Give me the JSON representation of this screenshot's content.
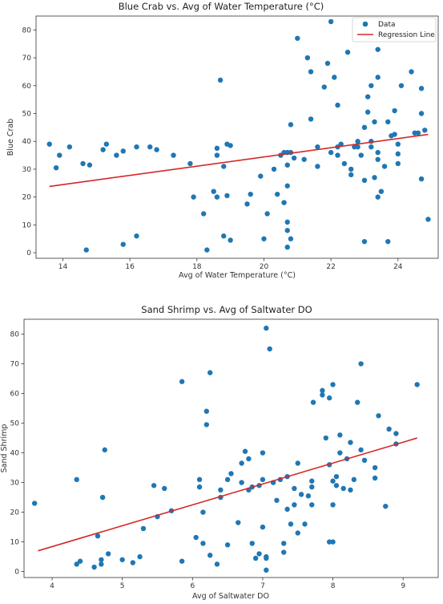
{
  "chart_data": [
    {
      "type": "scatter",
      "title": "Blue Crab vs. Avg of Water Temperature (°C)",
      "xlabel": "Avg of Water Temperature (°C)",
      "ylabel": "Blue Crab",
      "xlim": [
        13.2,
        25.2
      ],
      "ylim": [
        -2,
        85
      ],
      "xticks": [
        14,
        16,
        18,
        20,
        22,
        24
      ],
      "yticks": [
        0,
        10,
        20,
        30,
        40,
        50,
        60,
        70,
        80
      ],
      "grid": false,
      "legend": "top-right",
      "legend_entries": [
        "Data",
        "Regression Line"
      ],
      "point_color": "#1f77b4",
      "line_color": "#d62728",
      "regression_line": {
        "x": [
          13.6,
          24.9
        ],
        "y": [
          23.8,
          42.5
        ]
      },
      "points": [
        [
          13.6,
          39
        ],
        [
          13.8,
          30.5
        ],
        [
          13.9,
          35
        ],
        [
          14.2,
          38
        ],
        [
          14.6,
          32
        ],
        [
          14.8,
          31.5
        ],
        [
          15.2,
          37
        ],
        [
          15.3,
          39
        ],
        [
          15.6,
          35
        ],
        [
          15.8,
          36.5
        ],
        [
          16.2,
          38
        ],
        [
          16.6,
          38
        ],
        [
          16.8,
          37
        ],
        [
          17.3,
          35
        ],
        [
          14.7,
          1
        ],
        [
          15.8,
          3
        ],
        [
          16.2,
          6
        ],
        [
          17.8,
          32
        ],
        [
          17.9,
          20
        ],
        [
          18.2,
          14
        ],
        [
          18.3,
          1
        ],
        [
          18.5,
          22
        ],
        [
          18.6,
          35
        ],
        [
          18.6,
          37.5
        ],
        [
          18.7,
          62
        ],
        [
          18.8,
          31
        ],
        [
          18.9,
          39
        ],
        [
          19,
          38.5
        ],
        [
          18.8,
          6
        ],
        [
          19,
          4.5
        ],
        [
          18.6,
          20
        ],
        [
          18.9,
          20.5
        ],
        [
          19.5,
          17.5
        ],
        [
          19.6,
          21
        ],
        [
          19.9,
          27.5
        ],
        [
          20.1,
          14
        ],
        [
          20.3,
          30
        ],
        [
          20.4,
          21
        ],
        [
          20.5,
          35
        ],
        [
          20.6,
          36
        ],
        [
          20.7,
          36
        ],
        [
          20.7,
          31.5
        ],
        [
          20.7,
          11
        ],
        [
          20.7,
          8
        ],
        [
          20.8,
          5
        ],
        [
          20.7,
          2
        ],
        [
          20.6,
          18
        ],
        [
          20.7,
          24
        ],
        [
          20.8,
          36
        ],
        [
          20.8,
          46
        ],
        [
          20.9,
          34
        ],
        [
          21,
          77
        ],
        [
          21.2,
          33.5
        ],
        [
          21.3,
          70
        ],
        [
          21.4,
          65
        ],
        [
          21.4,
          48
        ],
        [
          21.6,
          38
        ],
        [
          21.6,
          31
        ],
        [
          21.8,
          59.5
        ],
        [
          21.9,
          68
        ],
        [
          22,
          83
        ],
        [
          22,
          36
        ],
        [
          22.1,
          63
        ],
        [
          22.2,
          53
        ],
        [
          22.2,
          38
        ],
        [
          22.2,
          35
        ],
        [
          22.3,
          39
        ],
        [
          22.5,
          72
        ],
        [
          22.6,
          30
        ],
        [
          22.6,
          28
        ],
        [
          22.7,
          38
        ],
        [
          22.8,
          38
        ],
        [
          22.9,
          35
        ],
        [
          23,
          45
        ],
        [
          23,
          26
        ],
        [
          23,
          4
        ],
        [
          23.1,
          56
        ],
        [
          23.2,
          40
        ],
        [
          23.2,
          38
        ],
        [
          23.3,
          47
        ],
        [
          23.4,
          73
        ],
        [
          23.4,
          63
        ],
        [
          23.4,
          36
        ],
        [
          23.4,
          33.5
        ],
        [
          23.3,
          27
        ],
        [
          23.5,
          22
        ],
        [
          23.4,
          20
        ],
        [
          23.6,
          31
        ],
        [
          23.7,
          4
        ],
        [
          23.7,
          47
        ],
        [
          23.8,
          42
        ],
        [
          23.9,
          42.5
        ],
        [
          23.9,
          51
        ],
        [
          24,
          39
        ],
        [
          24,
          32
        ],
        [
          24,
          35.5
        ],
        [
          24.1,
          60
        ],
        [
          24.4,
          65
        ],
        [
          24.5,
          43
        ],
        [
          24.6,
          43
        ],
        [
          24.7,
          50
        ],
        [
          24.7,
          59
        ],
        [
          24.7,
          26.5
        ],
        [
          24.8,
          44
        ],
        [
          24.9,
          12
        ],
        [
          23.1,
          50.5
        ],
        [
          23.2,
          60
        ],
        [
          22.8,
          40
        ],
        [
          22.4,
          32
        ],
        [
          20,
          5
        ]
      ]
    },
    {
      "type": "scatter",
      "title": "Sand Shrimp vs. Avg of Saltwater DO",
      "xlabel": "Avg of Saltwater DO",
      "ylabel": "Sand Shrimp",
      "xlim": [
        3.6,
        9.5
      ],
      "ylim": [
        -2,
        85
      ],
      "xticks": [
        4,
        5,
        6,
        7,
        8,
        9
      ],
      "yticks": [
        0,
        10,
        20,
        30,
        40,
        50,
        60,
        70,
        80
      ],
      "grid": false,
      "point_color": "#1f77b4",
      "line_color": "#d62728",
      "regression_line": {
        "x": [
          3.8,
          9.2
        ],
        "y": [
          7,
          45
        ]
      },
      "points": [
        [
          3.75,
          23
        ],
        [
          4.35,
          31
        ],
        [
          4.4,
          3.5
        ],
        [
          4.35,
          2.5
        ],
        [
          4.6,
          1.5
        ],
        [
          4.65,
          12
        ],
        [
          4.7,
          2.5
        ],
        [
          4.7,
          4
        ],
        [
          4.72,
          25
        ],
        [
          4.75,
          41
        ],
        [
          4.8,
          6
        ],
        [
          5,
          4
        ],
        [
          5.15,
          3
        ],
        [
          5.25,
          5
        ],
        [
          5.3,
          14.5
        ],
        [
          5.45,
          29
        ],
        [
          5.5,
          18.5
        ],
        [
          5.6,
          28
        ],
        [
          5.7,
          20.5
        ],
        [
          5.85,
          64
        ],
        [
          5.85,
          3.5
        ],
        [
          6.05,
          11.5
        ],
        [
          6.1,
          31
        ],
        [
          6.1,
          28.5
        ],
        [
          6.15,
          20
        ],
        [
          6.15,
          9.5
        ],
        [
          6.2,
          54
        ],
        [
          6.2,
          49.5
        ],
        [
          6.25,
          67
        ],
        [
          6.25,
          5.5
        ],
        [
          6.35,
          2.5
        ],
        [
          6.4,
          25
        ],
        [
          6.4,
          27.5
        ],
        [
          6.5,
          9
        ],
        [
          6.55,
          33
        ],
        [
          6.65,
          16.5
        ],
        [
          6.7,
          36.5
        ],
        [
          6.7,
          30
        ],
        [
          6.75,
          40.5
        ],
        [
          6.8,
          38
        ],
        [
          6.8,
          27.5
        ],
        [
          6.85,
          28.5
        ],
        [
          6.85,
          9.5
        ],
        [
          6.9,
          4.5
        ],
        [
          6.95,
          6
        ],
        [
          6.95,
          29
        ],
        [
          7,
          40
        ],
        [
          7,
          31
        ],
        [
          7,
          15
        ],
        [
          7.05,
          5
        ],
        [
          7.05,
          4.5
        ],
        [
          7.05,
          0.5
        ],
        [
          7.05,
          82
        ],
        [
          7.1,
          75
        ],
        [
          7.15,
          30
        ],
        [
          7.2,
          24
        ],
        [
          7.25,
          31
        ],
        [
          7.3,
          9.5
        ],
        [
          7.3,
          6.5
        ],
        [
          7.35,
          32
        ],
        [
          7.35,
          21
        ],
        [
          7.4,
          16
        ],
        [
          7.45,
          28
        ],
        [
          7.45,
          22.5
        ],
        [
          7.5,
          36.5
        ],
        [
          7.5,
          13
        ],
        [
          7.6,
          16
        ],
        [
          7.65,
          25.5
        ],
        [
          7.7,
          22.5
        ],
        [
          7.7,
          28.5
        ],
        [
          7.7,
          30.5
        ],
        [
          7.72,
          57
        ],
        [
          7.85,
          61
        ],
        [
          7.85,
          59.5
        ],
        [
          7.9,
          45
        ],
        [
          7.95,
          58.5
        ],
        [
          7.95,
          36
        ],
        [
          8,
          63
        ],
        [
          8,
          30.5
        ],
        [
          8,
          22.5
        ],
        [
          8,
          10
        ],
        [
          8.05,
          32
        ],
        [
          8.05,
          29
        ],
        [
          8.1,
          46
        ],
        [
          8.15,
          28
        ],
        [
          8.2,
          38
        ],
        [
          8.25,
          43.5
        ],
        [
          8.25,
          27.5
        ],
        [
          8.3,
          31
        ],
        [
          8.35,
          57
        ],
        [
          8.4,
          70
        ],
        [
          8.4,
          41
        ],
        [
          8.45,
          37.5
        ],
        [
          8.6,
          31.5
        ],
        [
          8.6,
          35
        ],
        [
          8.65,
          52.5
        ],
        [
          8.75,
          22
        ],
        [
          8.8,
          48
        ],
        [
          8.9,
          43
        ],
        [
          8.9,
          46.5
        ],
        [
          9.2,
          63
        ],
        [
          8.1,
          40
        ],
        [
          7.55,
          26
        ],
        [
          6.5,
          31
        ],
        [
          7.95,
          10
        ]
      ]
    }
  ]
}
